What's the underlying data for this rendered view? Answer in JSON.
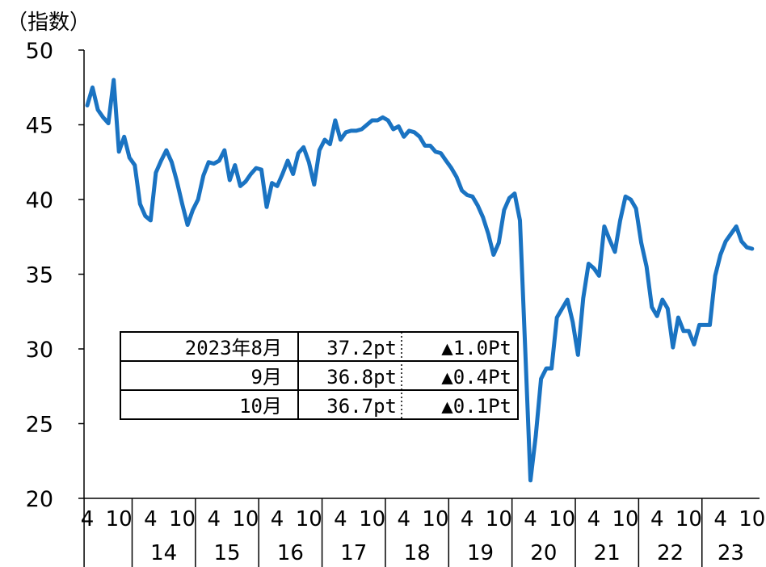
{
  "chart_data": {
    "type": "line",
    "unit_label": "（指数）",
    "ylim": [
      20,
      50
    ],
    "y_ticks": [
      "50",
      "45",
      "40",
      "35",
      "30",
      "25",
      "20"
    ],
    "y_tick_values": [
      50,
      45,
      40,
      35,
      30,
      25,
      20
    ],
    "grid": false,
    "legend": "none",
    "x_month_labels": [
      "4",
      "10",
      "4",
      "10",
      "4",
      "10",
      "4",
      "10",
      "4",
      "10",
      "4",
      "10",
      "4",
      "10",
      "4",
      "10",
      "4",
      "10",
      "4",
      "10",
      "4",
      "10"
    ],
    "x_year_labels": [
      "14",
      "15",
      "16",
      "17",
      "18",
      "19",
      "20",
      "21",
      "22",
      "23"
    ],
    "x_start": "2013-04",
    "x_end": "2023-10",
    "series": [
      {
        "color": "#1a73c2",
        "values": [
          46.3,
          47.5,
          46.0,
          45.5,
          45.1,
          48.0,
          43.2,
          44.2,
          42.8,
          42.3,
          39.7,
          38.9,
          38.6,
          41.8,
          42.6,
          43.3,
          42.5,
          41.2,
          39.7,
          38.3,
          39.3,
          40.0,
          41.6,
          42.5,
          42.4,
          42.6,
          43.3,
          41.3,
          42.3,
          40.9,
          41.2,
          41.7,
          42.1,
          42.0,
          39.5,
          41.1,
          40.9,
          41.7,
          42.6,
          41.7,
          43.1,
          43.5,
          42.5,
          41.0,
          43.3,
          44.0,
          43.7,
          45.3,
          44.0,
          44.5,
          44.6,
          44.6,
          44.7,
          45.0,
          45.3,
          45.3,
          45.5,
          45.3,
          44.7,
          44.9,
          44.2,
          44.6,
          44.5,
          44.2,
          43.6,
          43.6,
          43.2,
          43.1,
          42.6,
          42.1,
          41.5,
          40.6,
          40.3,
          40.2,
          39.6,
          38.8,
          37.7,
          36.3,
          37.1,
          39.3,
          40.1,
          40.4,
          38.6,
          30.0,
          21.2,
          24.2,
          28.0,
          28.7,
          28.7,
          32.1,
          32.7,
          33.3,
          31.8,
          29.6,
          33.4,
          35.7,
          35.4,
          34.9,
          38.2,
          37.3,
          36.5,
          38.6,
          40.2,
          40.0,
          39.4,
          37.1,
          35.5,
          32.8,
          32.2,
          33.3,
          32.7,
          30.1,
          32.1,
          31.2,
          31.2,
          30.3,
          31.6,
          31.6,
          31.6,
          34.9,
          36.3,
          37.2,
          37.7,
          38.2,
          37.2,
          36.8,
          36.7
        ]
      }
    ],
    "table": [
      {
        "period": "2023年8月",
        "value": "37.2pt",
        "change": "▲1.0Pt"
      },
      {
        "period": "9月",
        "value": "36.8pt",
        "change": "▲0.4Pt"
      },
      {
        "period": "10月",
        "value": "36.7pt",
        "change": "▲0.1Pt"
      }
    ]
  }
}
